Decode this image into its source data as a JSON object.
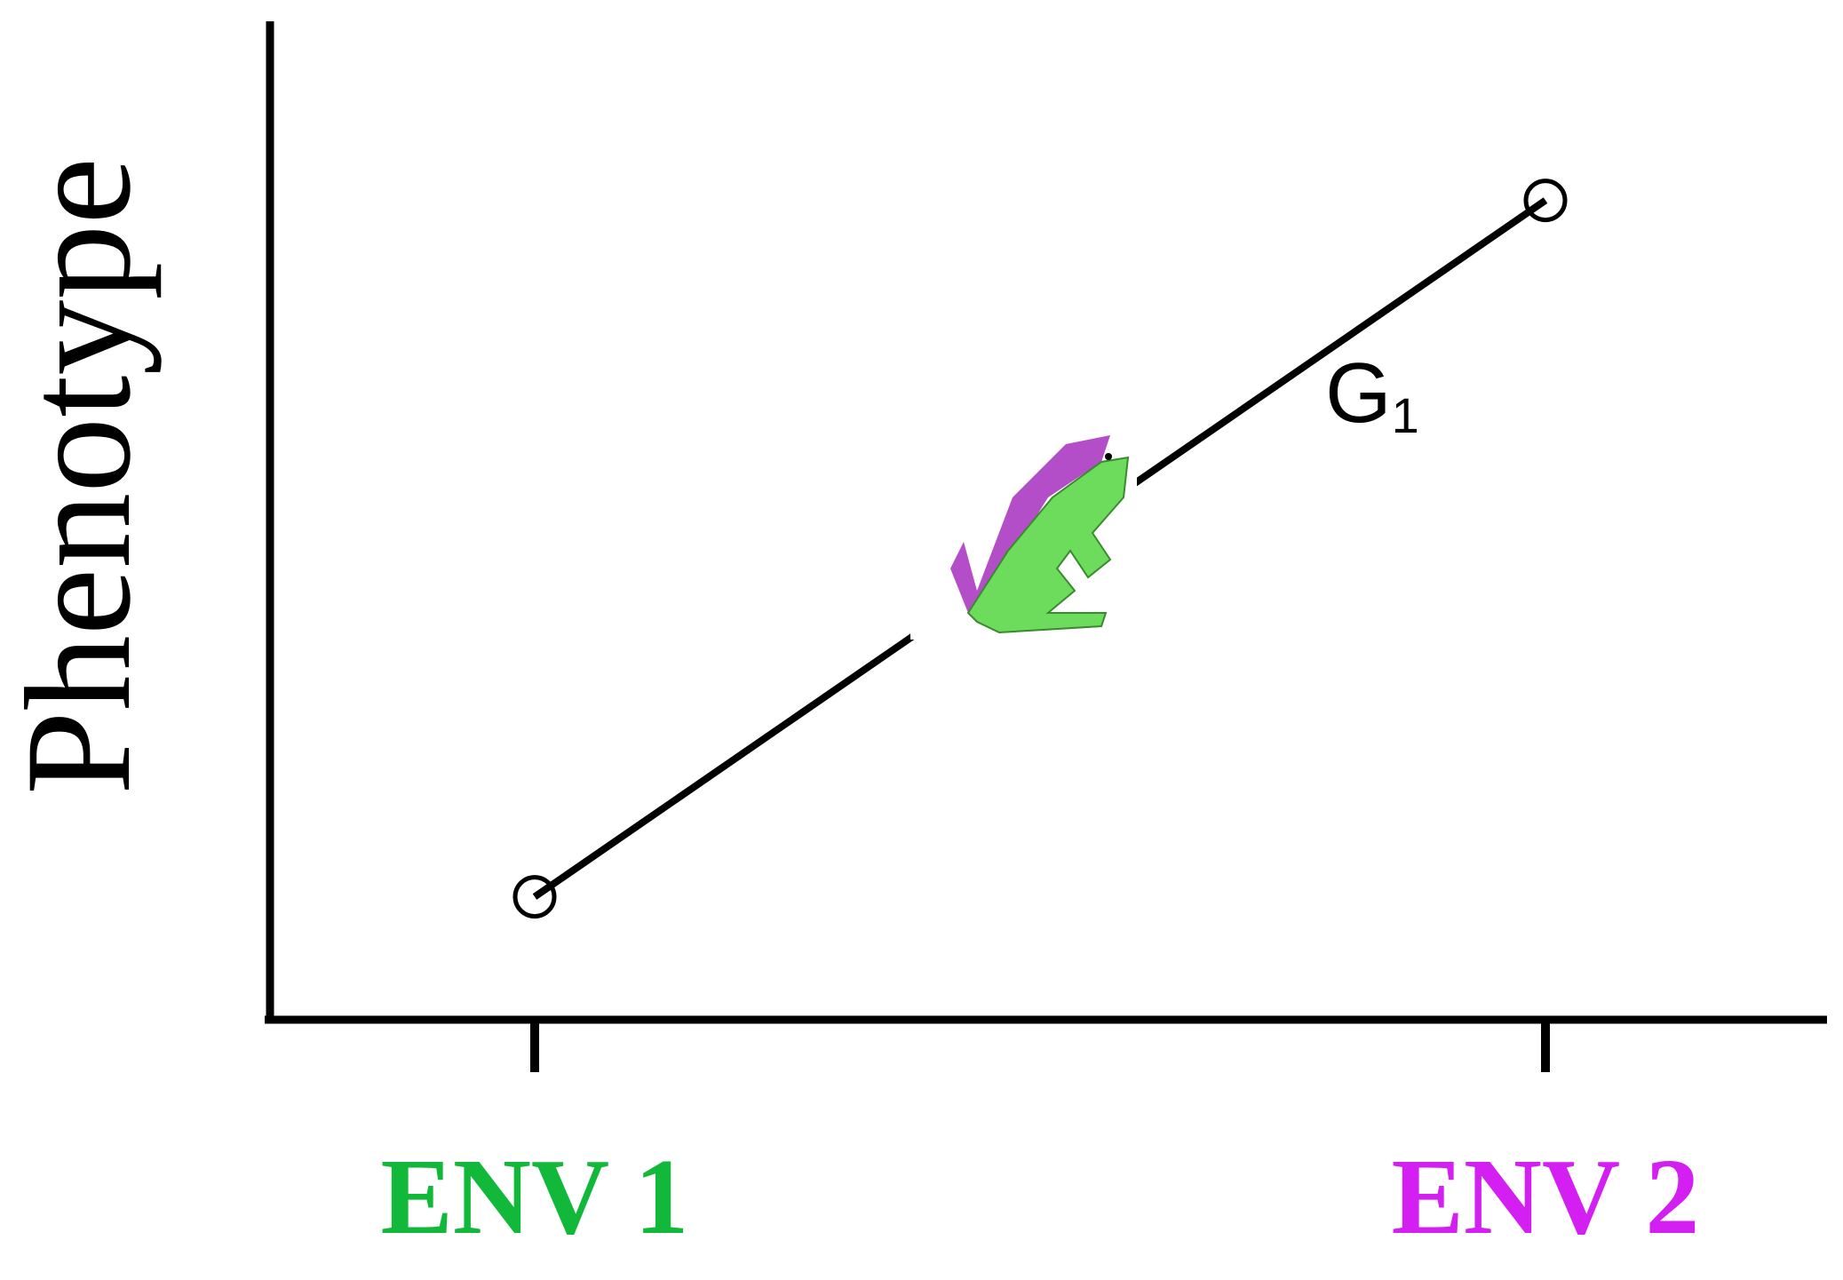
{
  "chart_data": {
    "type": "line",
    "ylabel": "Phenotype",
    "categories": [
      "ENV 1",
      "ENV 2"
    ],
    "category_colors": [
      "#12b83a",
      "#d41ff2"
    ],
    "series": [
      {
        "name": "G",
        "subscript": "1",
        "color": "#000000",
        "values": [
          1.2,
          8.2
        ]
      }
    ],
    "ylim": [
      0,
      10
    ],
    "grid": false
  }
}
